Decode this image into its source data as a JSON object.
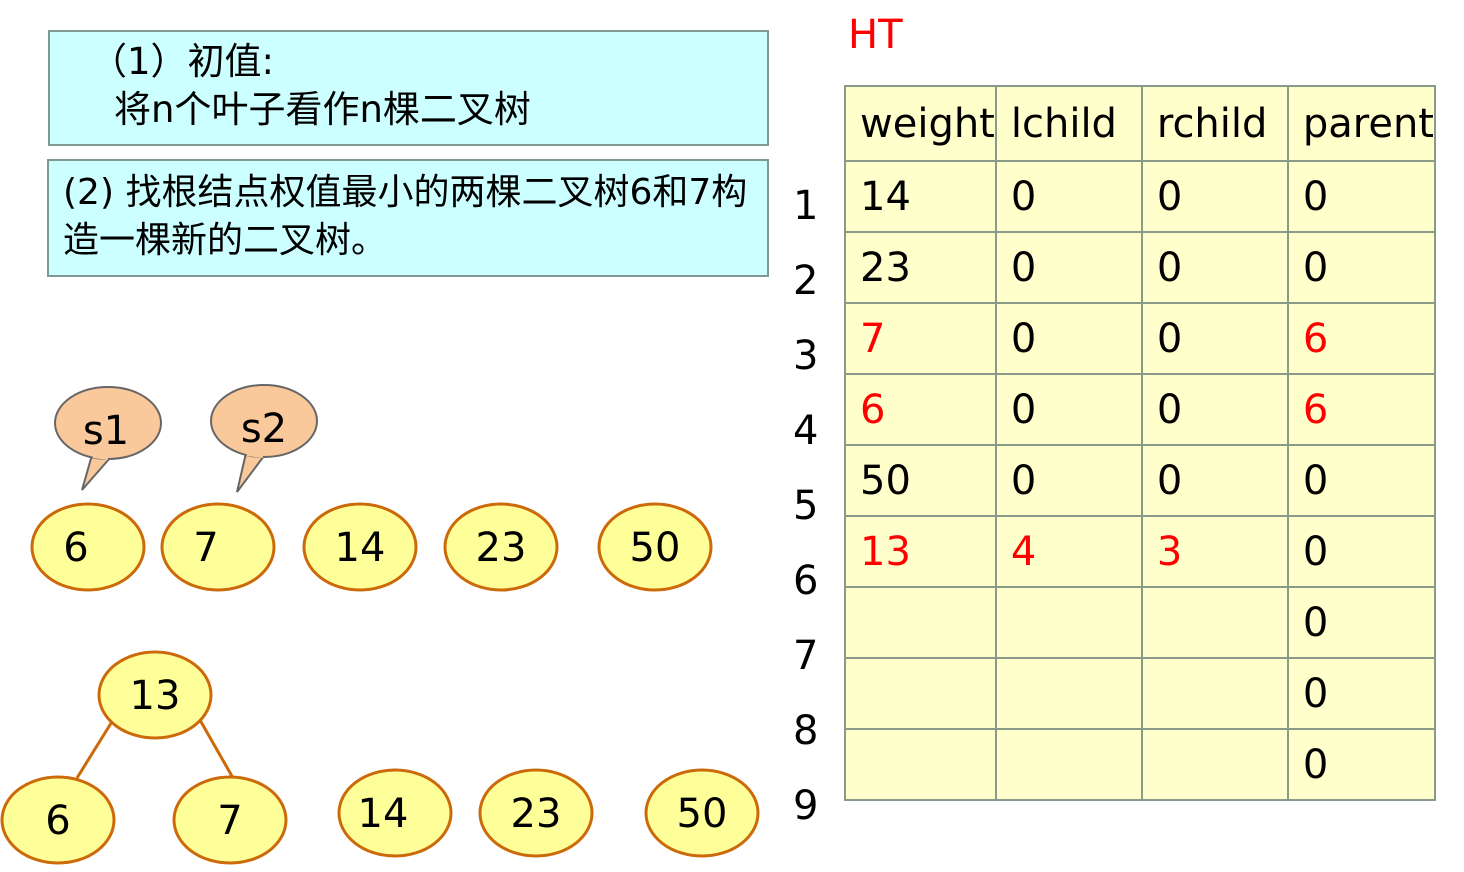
{
  "step1": {
    "line1": "（1）初值:",
    "line2": "将n个叶子看作n棵二叉树"
  },
  "step2": {
    "text": "(2) 找根结点权值最小的两棵二叉树6和7构造一棵新的二叉树。"
  },
  "callouts": {
    "s1": "s1",
    "s2": "s2"
  },
  "forest_before": [
    "6",
    "7",
    "14",
    "23",
    "50"
  ],
  "forest_after": {
    "root": "13",
    "left": "6",
    "right": "7",
    "others": [
      "14",
      "23",
      "50"
    ]
  },
  "table": {
    "title": "HT",
    "headers": [
      "weight",
      "lchild",
      "rchild",
      "parent"
    ],
    "row_numbers": [
      "1",
      "2",
      "3",
      "4",
      "5",
      "6",
      "7",
      "8",
      "9"
    ],
    "rows": [
      [
        {
          "v": "14"
        },
        {
          "v": "0"
        },
        {
          "v": "0"
        },
        {
          "v": "0"
        }
      ],
      [
        {
          "v": "23"
        },
        {
          "v": "0"
        },
        {
          "v": "0"
        },
        {
          "v": "0"
        }
      ],
      [
        {
          "v": "7",
          "red": true
        },
        {
          "v": "0"
        },
        {
          "v": "0"
        },
        {
          "v": "6",
          "red": true
        }
      ],
      [
        {
          "v": "6",
          "red": true
        },
        {
          "v": "0"
        },
        {
          "v": "0"
        },
        {
          "v": "6",
          "red": true
        }
      ],
      [
        {
          "v": "50"
        },
        {
          "v": "0"
        },
        {
          "v": "0"
        },
        {
          "v": "0"
        }
      ],
      [
        {
          "v": "13",
          "red": true
        },
        {
          "v": "4",
          "red": true
        },
        {
          "v": "3",
          "red": true
        },
        {
          "v": "0"
        }
      ],
      [
        {
          "v": ""
        },
        {
          "v": ""
        },
        {
          "v": ""
        },
        {
          "v": "0"
        }
      ],
      [
        {
          "v": ""
        },
        {
          "v": ""
        },
        {
          "v": ""
        },
        {
          "v": "0"
        }
      ],
      [
        {
          "v": ""
        },
        {
          "v": ""
        },
        {
          "v": ""
        },
        {
          "v": "0"
        }
      ]
    ]
  },
  "colors": {
    "node_fill": "#ffff99",
    "node_stroke": "#cc6a0a",
    "callout_fill": "#f9c89b",
    "highlight": "#ff0000",
    "table_bg": "#ffffcc",
    "box_bg": "#ccffff"
  }
}
